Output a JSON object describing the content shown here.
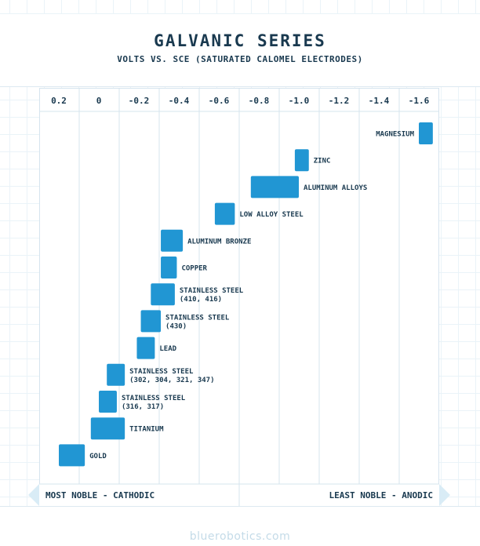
{
  "brand": "bluerobotics.com",
  "chart_data": {
    "type": "bar",
    "orientation": "horizontal-range",
    "title": "GALVANIC SERIES",
    "subtitle": "VOLTS VS. SCE (SATURATED CALOMEL ELECTRODES)",
    "x_ticks": [
      "0.2",
      "0",
      "-0.2",
      "-0.4",
      "-0.6",
      "-0.8",
      "-1.0",
      "-1.2",
      "-1.4",
      "-1.6"
    ],
    "xlim": [
      0.3,
      -1.7
    ],
    "grid": true,
    "series": [
      {
        "lines": [
          "MAGNESIUM"
        ],
        "range": [
          -1.6,
          -1.67
        ]
      },
      {
        "lines": [
          "ZINC"
        ],
        "range": [
          -0.98,
          -1.05
        ]
      },
      {
        "lines": [
          "ALUMINUM ALLOYS"
        ],
        "range": [
          -0.76,
          -1.0
        ]
      },
      {
        "lines": [
          "LOW ALLOY STEEL"
        ],
        "range": [
          -0.58,
          -0.68
        ]
      },
      {
        "lines": [
          "ALUMINUM BRONZE"
        ],
        "range": [
          -0.31,
          -0.42
        ]
      },
      {
        "lines": [
          "COPPER"
        ],
        "range": [
          -0.31,
          -0.39
        ]
      },
      {
        "lines": [
          "STAINLESS STEEL",
          "(410, 416)"
        ],
        "range": [
          -0.26,
          -0.38
        ]
      },
      {
        "lines": [
          "STAINLESS STEEL",
          "(430)"
        ],
        "range": [
          -0.21,
          -0.31
        ]
      },
      {
        "lines": [
          "LEAD"
        ],
        "range": [
          -0.19,
          -0.28
        ]
      },
      {
        "lines": [
          "STAINLESS STEEL",
          "(302, 304, 321, 347)"
        ],
        "range": [
          -0.04,
          -0.13
        ]
      },
      {
        "lines": [
          "STAINLESS STEEL",
          "(316, 317)"
        ],
        "range": [
          0.0,
          -0.09
        ]
      },
      {
        "lines": [
          "TITANIUM"
        ],
        "range": [
          0.04,
          -0.13
        ]
      },
      {
        "lines": [
          "GOLD"
        ],
        "range": [
          0.2,
          0.07
        ]
      }
    ],
    "bar_color": "#2196d3",
    "arrow_left": "MOST NOBLE - CATHODIC",
    "arrow_right": "LEAST NOBLE - ANODIC"
  }
}
